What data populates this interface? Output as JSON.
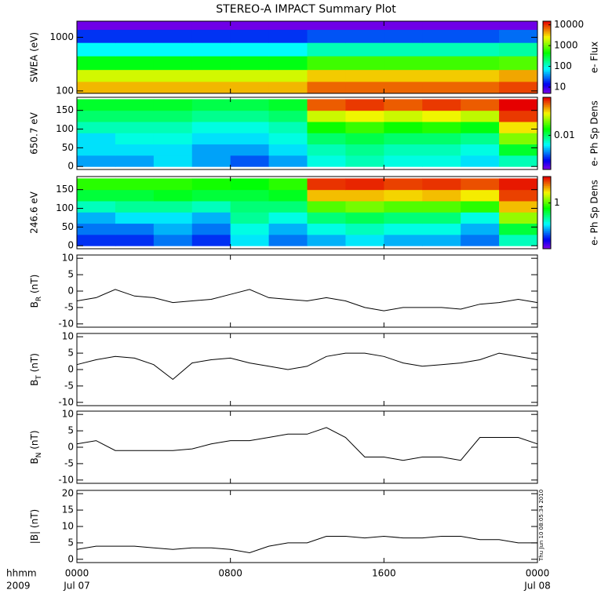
{
  "chart_data": [
    {
      "type": "heatmap",
      "title": "STEREO-A IMPACT Summary Plot",
      "ylabel": "SWEA (eV)",
      "ylog": true,
      "ylim": [
        90,
        2000
      ],
      "yticks": [
        100,
        1000
      ],
      "xbins": [
        0,
        2,
        4,
        6,
        8,
        10,
        12,
        14,
        16,
        18,
        20,
        22,
        24
      ],
      "ybins": [
        90,
        150,
        250,
        450,
        800,
        1400,
        2000
      ],
      "values": [
        [
          4000,
          4000,
          4000,
          4000,
          4000,
          4000,
          7000,
          7000,
          7000,
          7000,
          7000,
          9000
        ],
        [
          2000,
          2000,
          2000,
          2000,
          2000,
          2000,
          3500,
          3500,
          3500,
          3500,
          3500,
          4500
        ],
        [
          400,
          400,
          400,
          400,
          400,
          400,
          700,
          700,
          700,
          700,
          700,
          800
        ],
        [
          80,
          80,
          80,
          80,
          80,
          80,
          130,
          130,
          130,
          130,
          130,
          150
        ],
        [
          20,
          20,
          20,
          20,
          20,
          20,
          25,
          25,
          25,
          25,
          25,
          30
        ],
        [
          6,
          6,
          6,
          6,
          6,
          6,
          6,
          6,
          6,
          6,
          6,
          6
        ]
      ],
      "colorbar": {
        "label": "e- Flux",
        "log": true,
        "lim": [
          5,
          15000
        ],
        "ticks": [
          10,
          100,
          1000,
          10000
        ]
      }
    },
    {
      "type": "heatmap",
      "ylabel": "650.7 eV",
      "ylog": false,
      "ylim": [
        -8,
        185
      ],
      "yticks": [
        0,
        50,
        100,
        150
      ],
      "xbins": [
        0,
        2,
        4,
        6,
        8,
        10,
        12,
        14,
        16,
        18,
        20,
        22,
        24
      ],
      "ybins": [
        0,
        30,
        60,
        90,
        120,
        150,
        180
      ],
      "values": [
        [
          0.005,
          0.005,
          0.006,
          0.005,
          0.004,
          0.005,
          0.007,
          0.008,
          0.007,
          0.007,
          0.006,
          0.008
        ],
        [
          0.006,
          0.006,
          0.006,
          0.005,
          0.005,
          0.006,
          0.008,
          0.009,
          0.008,
          0.008,
          0.007,
          0.012
        ],
        [
          0.006,
          0.007,
          0.007,
          0.006,
          0.006,
          0.007,
          0.01,
          0.011,
          0.01,
          0.01,
          0.009,
          0.02
        ],
        [
          0.008,
          0.008,
          0.008,
          0.007,
          0.007,
          0.008,
          0.014,
          0.016,
          0.014,
          0.015,
          0.013,
          0.03
        ],
        [
          0.01,
          0.01,
          0.01,
          0.009,
          0.009,
          0.01,
          0.025,
          0.028,
          0.025,
          0.028,
          0.024,
          0.05
        ],
        [
          0.012,
          0.012,
          0.012,
          0.011,
          0.011,
          0.012,
          0.045,
          0.05,
          0.045,
          0.05,
          0.045,
          0.06
        ]
      ],
      "colorbar": {
        "label": "e- Ph Sp Dens",
        "log": true,
        "lim": [
          0.002,
          0.06
        ],
        "ticks": [
          0.01
        ]
      }
    },
    {
      "type": "heatmap",
      "ylabel": "246.6 eV",
      "ylog": false,
      "ylim": [
        -8,
        185
      ],
      "yticks": [
        0,
        50,
        100,
        150
      ],
      "xbins": [
        0,
        2,
        4,
        6,
        8,
        10,
        12,
        14,
        16,
        18,
        20,
        22,
        24
      ],
      "ybins": [
        0,
        30,
        60,
        90,
        120,
        150,
        180
      ],
      "values": [
        [
          0.25,
          0.25,
          0.3,
          0.25,
          0.4,
          0.3,
          0.35,
          0.4,
          0.35,
          0.35,
          0.3,
          0.5
        ],
        [
          0.3,
          0.3,
          0.35,
          0.3,
          0.45,
          0.35,
          0.45,
          0.5,
          0.45,
          0.45,
          0.35,
          0.7
        ],
        [
          0.35,
          0.4,
          0.4,
          0.35,
          0.55,
          0.45,
          0.6,
          0.65,
          0.6,
          0.6,
          0.45,
          1.2
        ],
        [
          0.5,
          0.55,
          0.55,
          0.5,
          0.6,
          0.6,
          1.0,
          1.1,
          1.0,
          1.0,
          0.9,
          1.8
        ],
        [
          0.7,
          0.7,
          0.75,
          0.7,
          0.7,
          0.75,
          1.8,
          1.8,
          1.7,
          1.8,
          1.6,
          2.5
        ],
        [
          0.9,
          0.9,
          0.9,
          0.85,
          0.8,
          0.9,
          2.6,
          2.7,
          2.5,
          2.6,
          2.4,
          2.8
        ]
      ],
      "colorbar": {
        "label": "e- Ph Sp Dens",
        "log": true,
        "lim": [
          0.15,
          3
        ],
        "ticks": [
          1
        ]
      }
    },
    {
      "type": "line",
      "ylabel": [
        "B",
        "R",
        " (nT)"
      ],
      "ylim": [
        -11,
        11
      ],
      "yticks": [
        -10,
        -5,
        0,
        5,
        10
      ],
      "color": "#000000",
      "x": [
        0,
        1,
        2,
        3,
        4,
        5,
        6,
        7,
        8,
        9,
        10,
        11,
        12,
        13,
        14,
        15,
        16,
        17,
        18,
        19,
        20,
        21,
        22,
        23,
        24
      ],
      "values": [
        -3,
        -2,
        0.5,
        -1.5,
        -2,
        -3.5,
        -3,
        -2.5,
        -1,
        0.5,
        -2,
        -2.5,
        -3,
        -2,
        -3,
        -5,
        -6,
        -5,
        -5,
        -5,
        -5.5,
        -4,
        -3.5,
        -2.5,
        -3.5
      ]
    },
    {
      "type": "line",
      "ylabel": [
        "B",
        "T",
        " (nT)"
      ],
      "ylim": [
        -11,
        11
      ],
      "yticks": [
        -10,
        -5,
        0,
        5,
        10
      ],
      "color": "#000000",
      "x": [
        0,
        1,
        2,
        3,
        4,
        5,
        6,
        7,
        8,
        9,
        10,
        11,
        12,
        13,
        14,
        15,
        16,
        17,
        18,
        19,
        20,
        21,
        22,
        23,
        24
      ],
      "values": [
        1.5,
        3,
        4,
        3.5,
        1.5,
        -3,
        2,
        3,
        3.5,
        2,
        1,
        0,
        1,
        4,
        5,
        5,
        4,
        2,
        1,
        1.5,
        2,
        3,
        5,
        4,
        3
      ]
    },
    {
      "type": "line",
      "ylabel": [
        "B",
        "N",
        " (nT)"
      ],
      "ylim": [
        -11,
        11
      ],
      "yticks": [
        -10,
        -5,
        0,
        5,
        10
      ],
      "color": "#000000",
      "x": [
        0,
        1,
        2,
        3,
        4,
        5,
        6,
        7,
        8,
        9,
        10,
        11,
        12,
        13,
        14,
        15,
        16,
        17,
        18,
        19,
        20,
        21,
        22,
        23,
        24
      ],
      "values": [
        1,
        2,
        -1,
        -1,
        -1,
        -1,
        -0.5,
        1,
        2,
        2,
        3,
        4,
        4,
        6,
        3,
        -3,
        -3,
        -4,
        -3,
        -3,
        -4,
        3,
        3,
        3,
        1
      ]
    },
    {
      "type": "line",
      "ylabel": [
        "|B|",
        "",
        " (nT)"
      ],
      "ylim": [
        -1,
        21
      ],
      "yticks": [
        0,
        5,
        10,
        15,
        20
      ],
      "color": "#000000",
      "x": [
        0,
        1,
        2,
        3,
        4,
        5,
        6,
        7,
        8,
        9,
        10,
        11,
        12,
        13,
        14,
        15,
        16,
        17,
        18,
        19,
        20,
        21,
        22,
        23,
        24
      ],
      "values": [
        3,
        4,
        4,
        4,
        3.5,
        3,
        3.5,
        3.5,
        3,
        2,
        4,
        5,
        5,
        7,
        7,
        6.5,
        7,
        6.5,
        6.5,
        7,
        7,
        6,
        6,
        5,
        5
      ],
      "xlim": [
        0,
        24
      ],
      "xticks": [
        {
          "value": 0,
          "label": "0000"
        },
        {
          "value": 8,
          "label": "0800"
        },
        {
          "value": 16,
          "label": "1600"
        },
        {
          "value": 24,
          "label": "0000"
        }
      ],
      "date_labels": [
        {
          "value": 0,
          "label": "Jul 07"
        },
        {
          "value": 24,
          "label": "Jul 08"
        }
      ],
      "axis_prefix": [
        "hhmm",
        "2009"
      ],
      "annotation": "Thu Jun 10 08:05:34 2010"
    }
  ]
}
